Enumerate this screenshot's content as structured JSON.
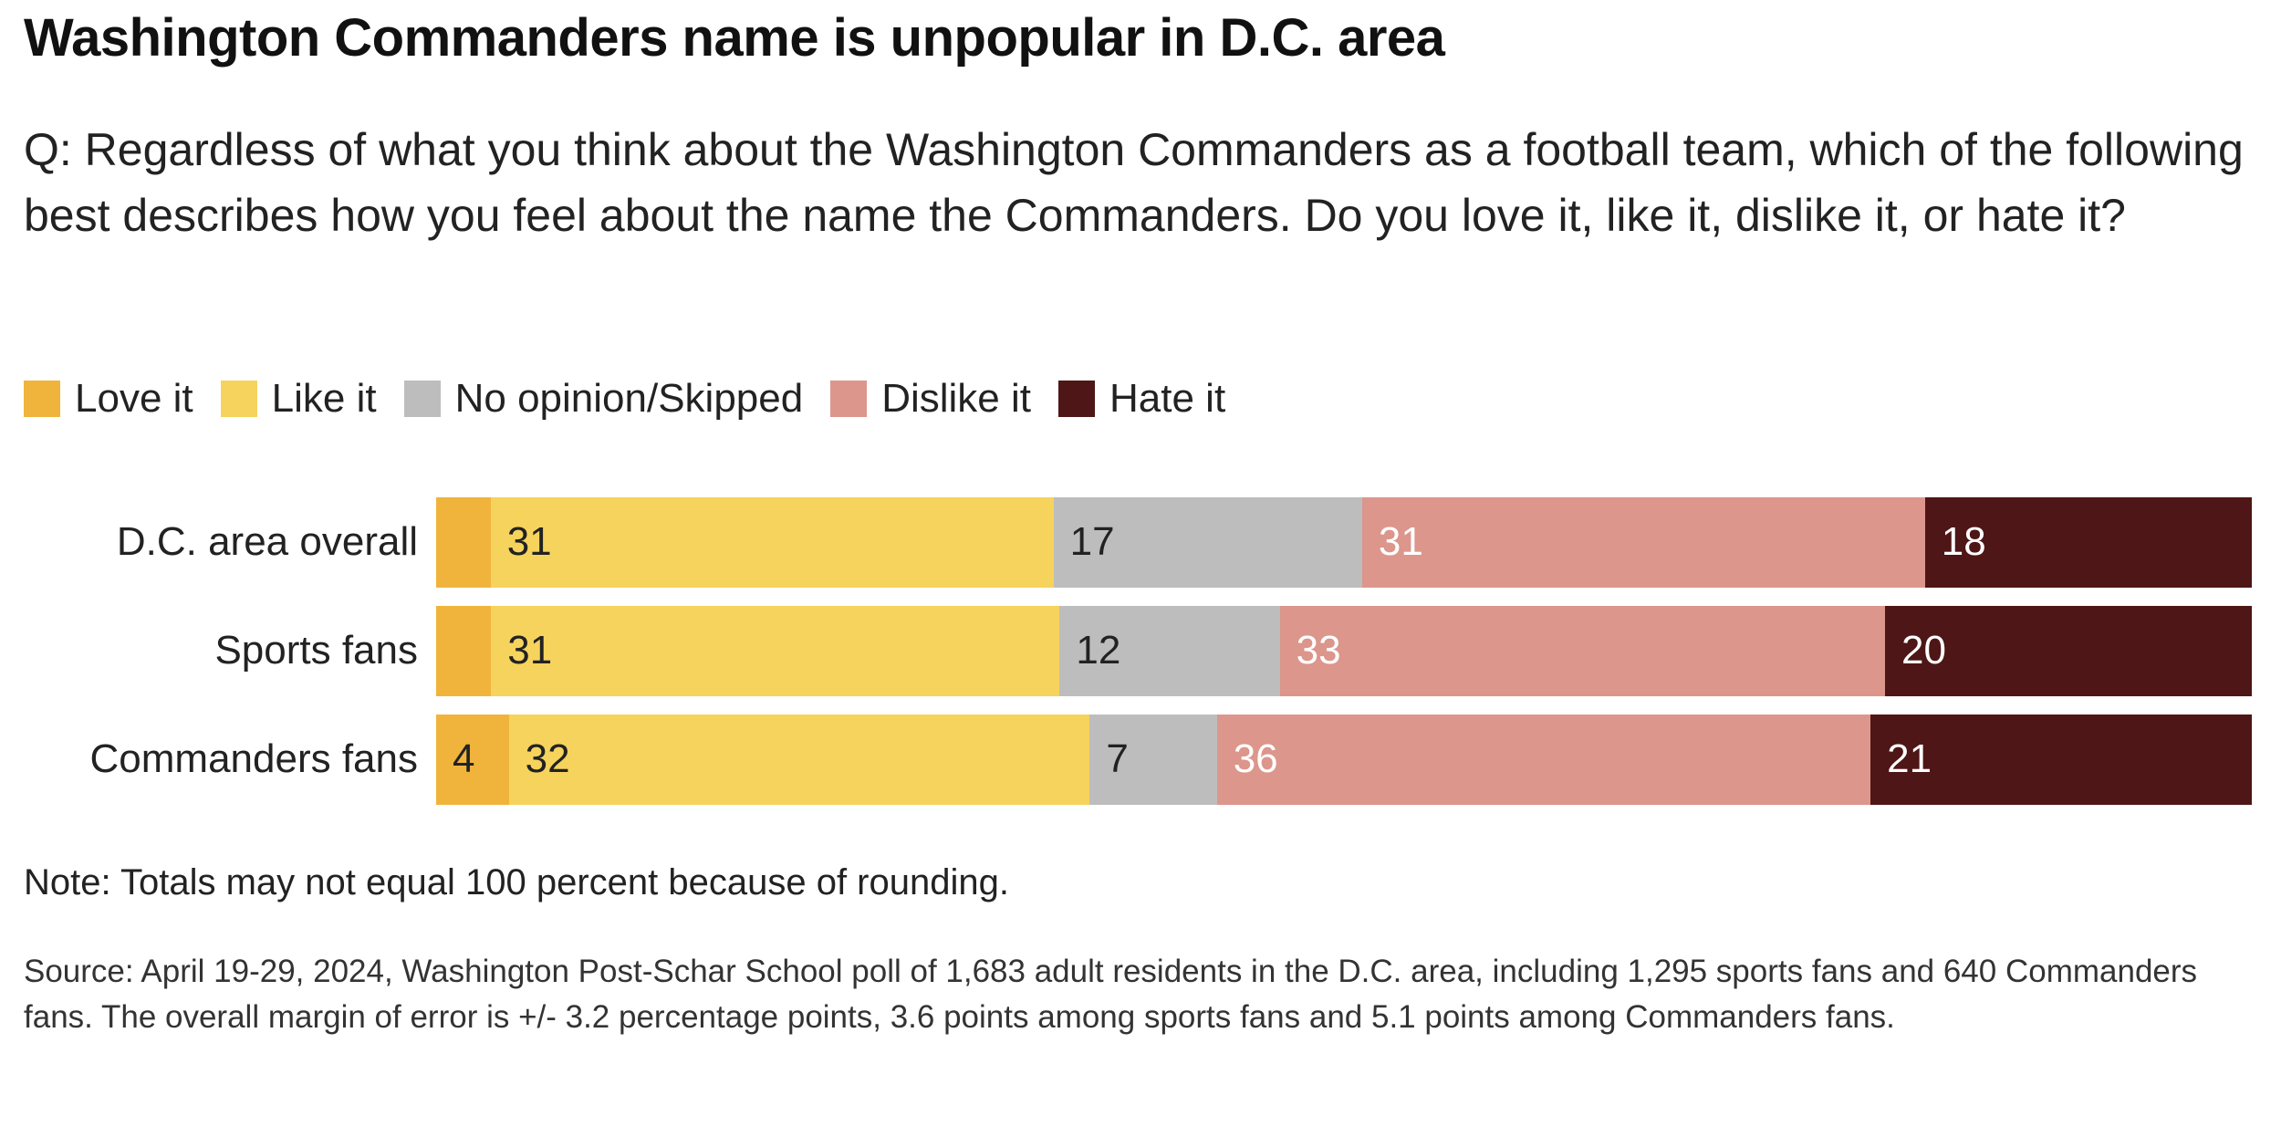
{
  "title": "Washington Commanders name is unpopular in D.C. area",
  "question": "Q: Regardless of what you think about the Washington Commanders as a football team, which of the following best describes how you feel about the name the Commanders. Do you love it, like it, dislike it, or hate it?",
  "note": "Note: Totals may not equal 100 percent because of rounding.",
  "source": "Source: April 19-29, 2024, Washington Post-Schar School poll of 1,683 adult residents in the D.C. area, including 1,295 sports fans and 640 Commanders fans. The overall margin of error is +/- 3.2 percentage points, 3.6 points among sports fans and 5.1 points among Commanders fans.",
  "chart_data": {
    "type": "bar",
    "stacked": true,
    "orientation": "horizontal",
    "categories": [
      "D.C. area overall",
      "Sports fans",
      "Commanders fans"
    ],
    "series": [
      {
        "name": "Love it",
        "color": "#f0b43c",
        "values": [
          3,
          3,
          4
        ],
        "labels": [
          "",
          "",
          "4"
        ],
        "label_color": "#222222"
      },
      {
        "name": "Like it",
        "color": "#f6d35c",
        "values": [
          31,
          31,
          32
        ],
        "labels": [
          "31",
          "31",
          "32"
        ],
        "label_color": "#222222"
      },
      {
        "name": "No opinion/Skipped",
        "color": "#bdbdbd",
        "values": [
          17,
          12,
          7
        ],
        "labels": [
          "17",
          "12",
          "7"
        ],
        "label_color": "#222222"
      },
      {
        "name": "Dislike it",
        "color": "#dc968c",
        "values": [
          31,
          33,
          36
        ],
        "labels": [
          "31",
          "33",
          "36"
        ],
        "label_color": "#ffffff"
      },
      {
        "name": "Hate it",
        "color": "#4e1616",
        "values": [
          18,
          20,
          21
        ],
        "labels": [
          "18",
          "20",
          "21"
        ],
        "label_color": "#ffffff"
      }
    ],
    "xlim": [
      0,
      100
    ],
    "legend": "top-left"
  }
}
